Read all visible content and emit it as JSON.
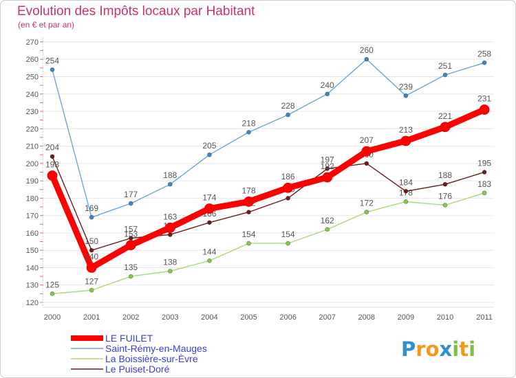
{
  "chart_data": {
    "type": "line",
    "title": "Evolution des Impôts locaux par Habitant",
    "subtitle": "(en € et par an)",
    "xlabel": "",
    "ylabel": "",
    "categories": [
      "2000",
      "2001",
      "2002",
      "2003",
      "2004",
      "2005",
      "2006",
      "2007",
      "2008",
      "2009",
      "2010",
      "2011"
    ],
    "yticks": [
      120,
      130,
      140,
      150,
      160,
      170,
      180,
      190,
      200,
      210,
      220,
      230,
      240,
      250,
      260,
      270
    ],
    "ylim": [
      120,
      270
    ],
    "grid": true,
    "legend_position": "bottom-left",
    "series": [
      {
        "name": "LE FUILET",
        "color": "#ff0000",
        "marker_color": "#ff0000",
        "values": [
          193,
          140,
          153,
          163,
          174,
          178,
          186,
          192,
          207,
          213,
          221,
          231
        ]
      },
      {
        "name": "Saint-Rémy-en-Mauges",
        "color": "#6aa5dc",
        "marker_color": "#3d86c8",
        "values": [
          254,
          169,
          177,
          188,
          205,
          218,
          228,
          240,
          260,
          239,
          251,
          258
        ]
      },
      {
        "name": "La Boissière-sur-Èvre",
        "color": "#a6d97a",
        "marker_color": "#86c84e",
        "values": [
          125,
          127,
          135,
          138,
          144,
          154,
          154,
          162,
          172,
          178,
          176,
          183
        ]
      },
      {
        "name": "Le Puiset-Doré",
        "color": "#6e1b1b",
        "marker_color": "#6e1b1b",
        "values": [
          204,
          150,
          157,
          159,
          166,
          172,
          180,
          197,
          200,
          184,
          188,
          195
        ]
      }
    ]
  },
  "colors": {
    "title": "#cc3366",
    "legend_text": "#3c3cd8",
    "axis_text": "#555555",
    "label_text": "#555555",
    "grid": "#e6e6e6",
    "minor_tick": "#e06a6a",
    "border": "#cccccc"
  },
  "logo": {
    "text": "Proxiti",
    "letter_colors": [
      "#2f8fd0",
      "#f39a1c",
      "#f39a1c",
      "#2f8fd0",
      "#7cc242",
      "#f39a1c",
      "#7cc242"
    ]
  }
}
